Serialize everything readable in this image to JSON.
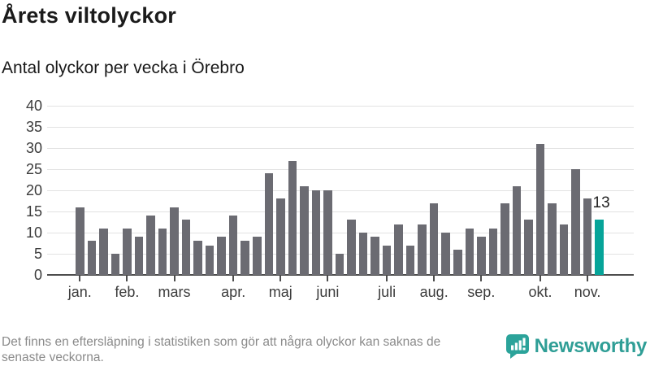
{
  "title": "Årets viltolyckor",
  "subtitle": "Antal olyckor per vecka i Örebro",
  "footnote": {
    "line1": "Det finns en eftersläpning i statistiken som gör att några olyckor kan saknas de",
    "line2": "senaste veckorna."
  },
  "logo": {
    "text": "Newsworthy"
  },
  "colors": {
    "bar": "#6b6b72",
    "highlight": "#06a499",
    "gridline": "#e2e2e2",
    "axis": "#4d4d4d",
    "logo_teal": "#2f9e96"
  },
  "chart_data": {
    "type": "bar",
    "title": "Årets viltolyckor",
    "subtitle": "Antal olyckor per vecka i Örebro",
    "x_unit": "vecka",
    "x": [
      1,
      2,
      3,
      4,
      5,
      6,
      7,
      8,
      9,
      10,
      11,
      12,
      13,
      14,
      15,
      16,
      17,
      18,
      19,
      20,
      21,
      22,
      23,
      24,
      25,
      26,
      27,
      28,
      29,
      30,
      31,
      32,
      33,
      34,
      35,
      36,
      37,
      38,
      39,
      40,
      41,
      42,
      43,
      44,
      45
    ],
    "values": [
      16,
      8,
      11,
      5,
      11,
      9,
      14,
      11,
      16,
      13,
      8,
      7,
      9,
      14,
      8,
      9,
      24,
      18,
      27,
      21,
      20,
      20,
      5,
      13,
      10,
      9,
      7,
      12,
      7,
      12,
      17,
      10,
      6,
      11,
      9,
      11,
      17,
      21,
      13,
      31,
      17,
      12,
      25,
      18,
      13
    ],
    "ylim": [
      0,
      40
    ],
    "yticks": [
      0,
      5,
      10,
      15,
      20,
      25,
      30,
      35,
      40
    ],
    "grid": "horizontal",
    "legend": "none",
    "bar_color": "#6b6b72",
    "highlight_color": "#06a499",
    "highlight_index": 44,
    "annotation": {
      "text": "13",
      "index": 44,
      "value": 13
    },
    "xticks": [
      {
        "label": "jan.",
        "week": 1
      },
      {
        "label": "feb.",
        "week": 5
      },
      {
        "label": "mars",
        "week": 9
      },
      {
        "label": "apr.",
        "week": 14
      },
      {
        "label": "maj",
        "week": 18
      },
      {
        "label": "juni",
        "week": 22
      },
      {
        "label": "juli",
        "week": 27
      },
      {
        "label": "aug.",
        "week": 31
      },
      {
        "label": "sep.",
        "week": 35
      },
      {
        "label": "okt.",
        "week": 40
      },
      {
        "label": "nov.",
        "week": 44
      }
    ]
  }
}
